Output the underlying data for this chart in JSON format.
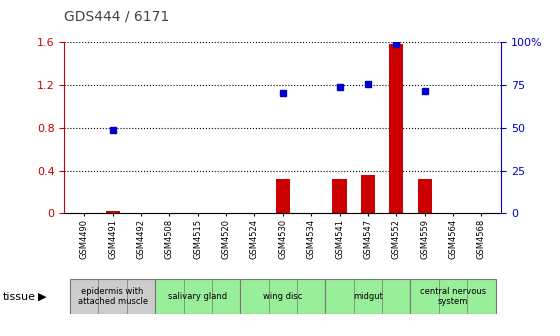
{
  "title": "GDS444 / 6171",
  "samples": [
    "GSM4490",
    "GSM4491",
    "GSM4492",
    "GSM4508",
    "GSM4515",
    "GSM4520",
    "GSM4524",
    "GSM4530",
    "GSM4534",
    "GSM4541",
    "GSM4547",
    "GSM4552",
    "GSM4559",
    "GSM4564",
    "GSM4568"
  ],
  "log_ratio": [
    0.0,
    0.02,
    0.0,
    0.0,
    0.0,
    0.0,
    0.0,
    0.32,
    0.0,
    0.32,
    0.36,
    1.58,
    0.32,
    0.0,
    0.0
  ],
  "percentile_left": [
    null,
    0.78,
    null,
    null,
    null,
    null,
    null,
    1.12,
    null,
    1.18,
    1.21,
    1.58,
    1.14,
    null,
    null
  ],
  "tissue_groups": [
    {
      "label": "epidermis with\nattached muscle",
      "start": 0,
      "end": 2,
      "color": "#cccccc"
    },
    {
      "label": "salivary gland",
      "start": 3,
      "end": 5,
      "color": "#99ee99"
    },
    {
      "label": "wing disc",
      "start": 6,
      "end": 8,
      "color": "#99ee99"
    },
    {
      "label": "midgut",
      "start": 9,
      "end": 11,
      "color": "#99ee99"
    },
    {
      "label": "central nervous\nsystem",
      "start": 12,
      "end": 14,
      "color": "#99ee99"
    }
  ],
  "bar_color": "#cc0000",
  "dot_color": "#0000cc",
  "ylim_left": [
    0.0,
    1.6
  ],
  "ylim_right": [
    0,
    100
  ],
  "yticks_left": [
    0,
    0.4,
    0.8,
    1.2,
    1.6
  ],
  "ytick_labels_left": [
    "0",
    "0.4",
    "0.8",
    "1.2",
    "1.6"
  ],
  "yticks_right_vals": [
    0,
    25,
    50,
    75,
    100
  ],
  "ytick_labels_right": [
    "0",
    "25",
    "50",
    "75",
    "100%"
  ]
}
